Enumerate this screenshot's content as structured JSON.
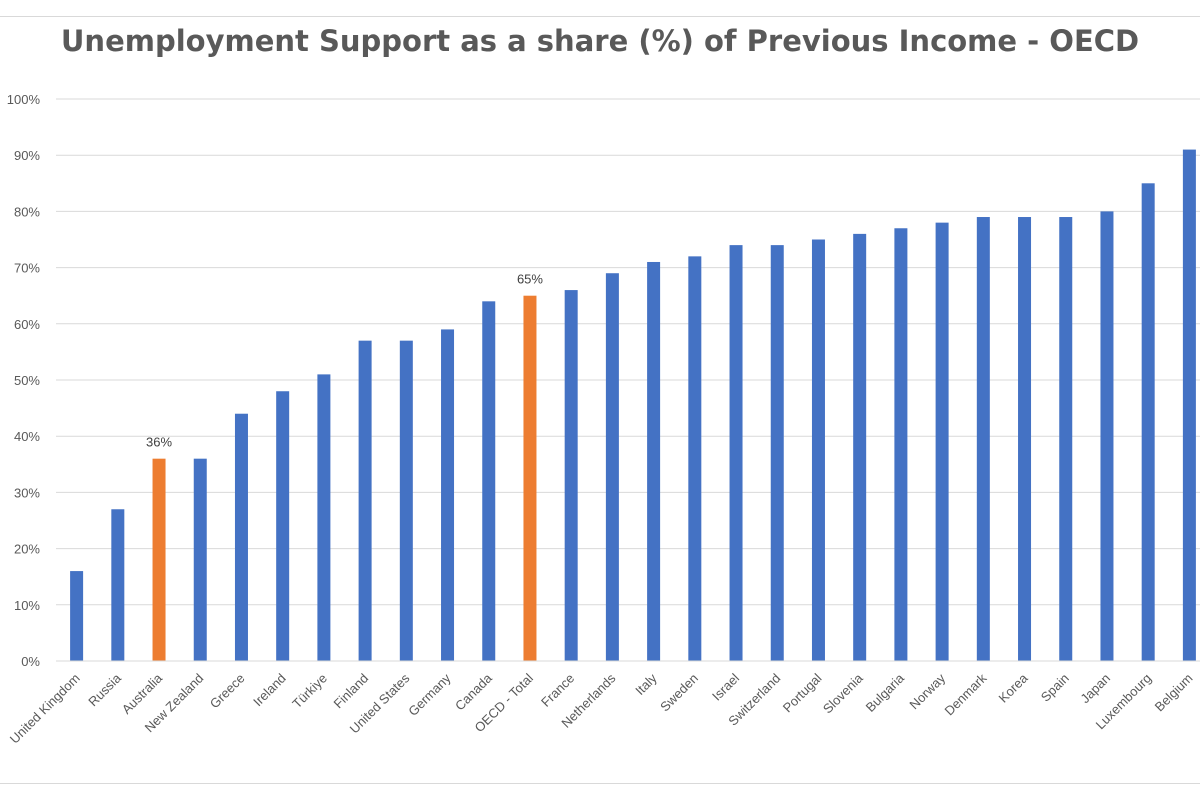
{
  "chart_data": {
    "type": "bar",
    "title": "Unemployment Support as a share (%) of Previous Income - OECD",
    "xlabel": "",
    "ylabel": "",
    "ylim": [
      0,
      100
    ],
    "y_ticks": [
      "0%",
      "10%",
      "20%",
      "30%",
      "40%",
      "50%",
      "60%",
      "70%",
      "80%",
      "90%",
      "100%"
    ],
    "grid": true,
    "legend": "none",
    "colors": {
      "default": "#4472c4",
      "highlight": "#ed7d31",
      "grid": "#d9d9d9"
    },
    "categories": [
      "United Kingdom",
      "Russia",
      "Australia",
      "New Zealand",
      "Greece",
      "Ireland",
      "Türkiye",
      "Finland",
      "United States",
      "Germany",
      "Canada",
      "OECD - Total",
      "France",
      "Netherlands",
      "Italy",
      "Sweden",
      "Israel",
      "Switzerland",
      "Portugal",
      "Slovenia",
      "Bulgaria",
      "Norway",
      "Denmark",
      "Korea",
      "Spain",
      "Japan",
      "Luxembourg",
      "Belgium"
    ],
    "values": [
      16,
      27,
      36,
      36,
      44,
      48,
      51,
      57,
      57,
      59,
      64,
      65,
      66,
      69,
      71,
      72,
      74,
      74,
      75,
      76,
      77,
      78,
      79,
      79,
      79,
      80,
      85,
      91
    ],
    "highlighted": [
      "Australia",
      "OECD - Total"
    ],
    "data_labels": [
      {
        "category": "Australia",
        "text": "36%"
      },
      {
        "category": "OECD - Total",
        "text": "65%"
      }
    ]
  }
}
